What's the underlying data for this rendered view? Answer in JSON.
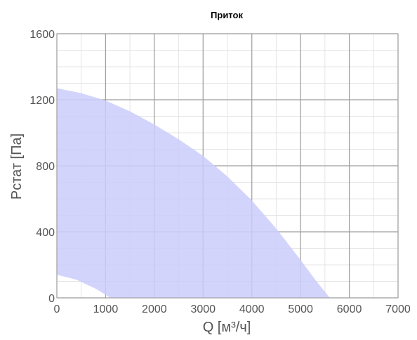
{
  "chart_data": {
    "type": "area",
    "title": "Приток",
    "xlabel": "Q [м³/ч]",
    "ylabel": "Pстат [Па]",
    "xlim": [
      0,
      7000
    ],
    "ylim": [
      0,
      1600
    ],
    "x_ticks": [
      0,
      1000,
      2000,
      3000,
      4000,
      5000,
      6000,
      7000
    ],
    "y_ticks": [
      0,
      400,
      800,
      1200,
      1600
    ],
    "x_tick_labels": [
      "0",
      "1000",
      "2000",
      "3000",
      "4000",
      "5000",
      "6000",
      "7000"
    ],
    "y_tick_labels": [
      "0",
      "400",
      "800",
      "1200",
      "1600"
    ],
    "x_minor_step": 500,
    "y_minor_step": 100,
    "grid": true,
    "fill_color": "#cbcdfc",
    "series": [
      {
        "role": "upper_boundary",
        "x": [
          0,
          500,
          1000,
          1500,
          2000,
          2500,
          3000,
          3500,
          4000,
          4500,
          5000,
          5300,
          5600
        ],
        "y": [
          1270,
          1240,
          1195,
          1130,
          1050,
          960,
          860,
          735,
          590,
          420,
          230,
          110,
          0
        ]
      },
      {
        "role": "lower_boundary",
        "x": [
          0,
          400,
          800,
          1100
        ],
        "y": [
          140,
          110,
          55,
          0
        ]
      }
    ]
  }
}
